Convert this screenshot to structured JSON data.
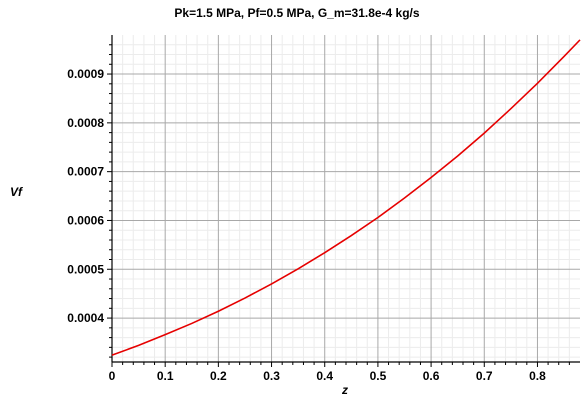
{
  "chart_data": {
    "type": "line",
    "title": "Pk=1.5 MPa, Pf=0.5 MPa, G_m=31.8e-4 kg/s",
    "xlabel": "z",
    "ylabel": "Vf",
    "xlim": [
      0,
      0.88
    ],
    "ylim": [
      0.00031,
      0.00098
    ],
    "x_ticks": [
      0,
      0.1,
      0.2,
      0.3,
      0.4,
      0.5,
      0.6,
      0.7,
      0.8
    ],
    "x_tick_labels": [
      "0",
      "0.1",
      "0.2",
      "0.3",
      "0.4",
      "0.5",
      "0.6",
      "0.7",
      "0.8"
    ],
    "y_ticks": [
      0.0004,
      0.0005,
      0.0006,
      0.0007,
      0.0008,
      0.0009
    ],
    "y_tick_labels": [
      "0.0004",
      "0.0005",
      "0.0006",
      "0.0007",
      "0.0008",
      "0.0009"
    ],
    "grid": true,
    "line_color": "#e60000",
    "series": [
      {
        "x": [
          0,
          0.05,
          0.1,
          0.15,
          0.2,
          0.25,
          0.3,
          0.35,
          0.4,
          0.45,
          0.5,
          0.55,
          0.6,
          0.65,
          0.7,
          0.75,
          0.8,
          0.85,
          0.88
        ],
        "y": [
          0.000324,
          0.000344,
          0.000366,
          0.000389,
          0.000414,
          0.000441,
          0.00047,
          0.000501,
          0.000534,
          0.000569,
          0.000606,
          0.000646,
          0.000688,
          0.000732,
          0.000779,
          0.000829,
          0.000881,
          0.000936,
          0.00097
        ]
      }
    ]
  }
}
